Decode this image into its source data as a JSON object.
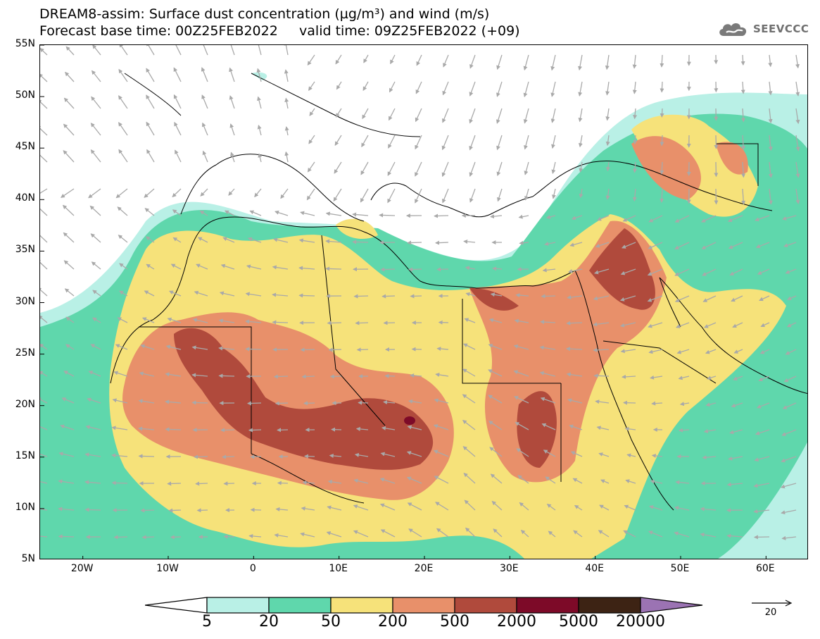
{
  "header": {
    "title_line1": "DREAM8-assim: Surface dust concentration (µg/m³) and wind (m/s)",
    "title_line2": "Forecast base time: 00Z25FEB2022     valid time: 09Z25FEB2022 (+09)"
  },
  "logo": {
    "text": "SEEVCCC",
    "icon": "cloud-icon"
  },
  "map": {
    "lat_range": [
      5,
      55
    ],
    "lon_range": [
      -25,
      65
    ],
    "lat_ticks": [
      {
        "value": 55,
        "label": "55N"
      },
      {
        "value": 50,
        "label": "50N"
      },
      {
        "value": 45,
        "label": "45N"
      },
      {
        "value": 40,
        "label": "40N"
      },
      {
        "value": 35,
        "label": "35N"
      },
      {
        "value": 30,
        "label": "30N"
      },
      {
        "value": 25,
        "label": "25N"
      },
      {
        "value": 20,
        "label": "20N"
      },
      {
        "value": 15,
        "label": "15N"
      },
      {
        "value": 10,
        "label": "10N"
      },
      {
        "value": 5,
        "label": "5N"
      }
    ],
    "lon_ticks": [
      {
        "value": -20,
        "label": "20W"
      },
      {
        "value": -10,
        "label": "10W"
      },
      {
        "value": 0,
        "label": "0"
      },
      {
        "value": 10,
        "label": "10E"
      },
      {
        "value": 20,
        "label": "20E"
      },
      {
        "value": 30,
        "label": "30E"
      },
      {
        "value": 40,
        "label": "40E"
      },
      {
        "value": 50,
        "label": "50E"
      },
      {
        "value": 60,
        "label": "60E"
      }
    ]
  },
  "colorbar": {
    "labels": [
      "5",
      "20",
      "50",
      "200",
      "500",
      "2000",
      "5000",
      "20000"
    ],
    "colors": {
      "5-20": "#b9f0e6",
      "20-50": "#5fd7ac",
      "50-200": "#f6e27a",
      "200-500": "#e8906a",
      "500-2000": "#b04a3c",
      "2000-5000": "#7d0a28",
      "5000-20000": "#3d2314",
      "over": "#9b73b3",
      "under": "#ffffff"
    }
  },
  "wind_reference": {
    "label": "20"
  }
}
